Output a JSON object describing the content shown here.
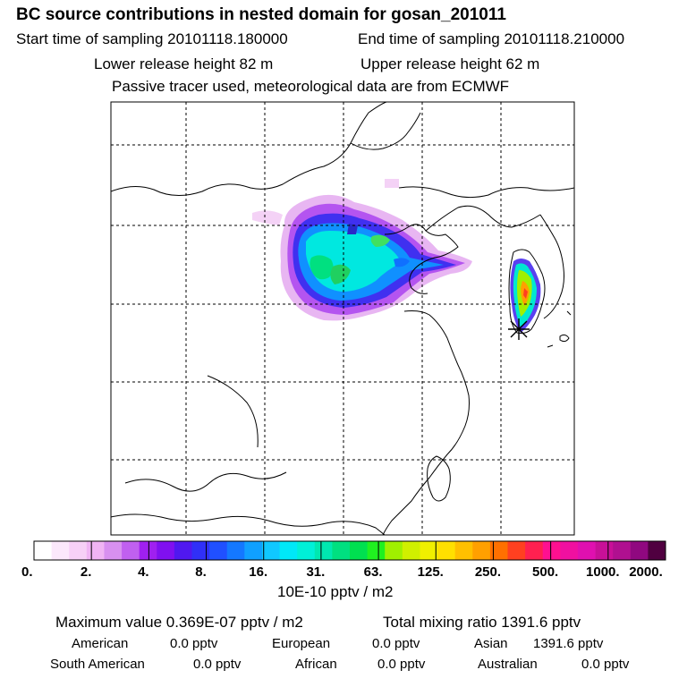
{
  "header": {
    "title": "BC  source contributions in nested domain for gosan_201011",
    "start": "Start time of sampling 20101118.180000",
    "end": "End time of sampling 20101118.210000",
    "lower": "Lower release height   82 m",
    "upper": "Upper release height   62 m",
    "note": "Passive tracer used, meteorological data are from ECMWF"
  },
  "colorbar": {
    "labels": [
      "0.",
      "2.",
      "4.",
      "8.",
      "16.",
      "31.",
      "63.",
      "125.",
      "250.",
      "500.",
      "1000.",
      "2000."
    ],
    "unit": "10E-10 pptv / m2",
    "colors": [
      "#ffffff",
      "#fbe8fb",
      "#f7d0f7",
      "#f0b4f4",
      "#d890f0",
      "#c060f0",
      "#a020f0",
      "#8010f0",
      "#5018f0",
      "#3030f8",
      "#2050ff",
      "#1478ff",
      "#10a0ff",
      "#10c8ff",
      "#00e8f8",
      "#00f0d8",
      "#00e8b0",
      "#00e080",
      "#00e050",
      "#20f020",
      "#a0f000",
      "#d0f000",
      "#f0f000",
      "#ffe000",
      "#ffc000",
      "#ffa000",
      "#ff7000",
      "#ff4020",
      "#ff2050",
      "#ff1090",
      "#f010a0",
      "#e010b0",
      "#c81098",
      "#b01090",
      "#900880",
      "#500040"
    ]
  },
  "stats": {
    "max_label": "Maximum value  0.369E-07 pptv / m2",
    "total_label": "Total mixing ratio     1391.6 pptv",
    "american": "American",
    "american_val": "0.0 pptv",
    "european": "European",
    "european_val": "0.0 pptv",
    "asian": "Asian",
    "asian_val": "1391.6 pptv",
    "south_american": "South American",
    "south_american_val": "0.0 pptv",
    "african": "African",
    "african_val": "0.0 pptv",
    "australian": "Australian",
    "australian_val": "0.0 pptv"
  }
}
